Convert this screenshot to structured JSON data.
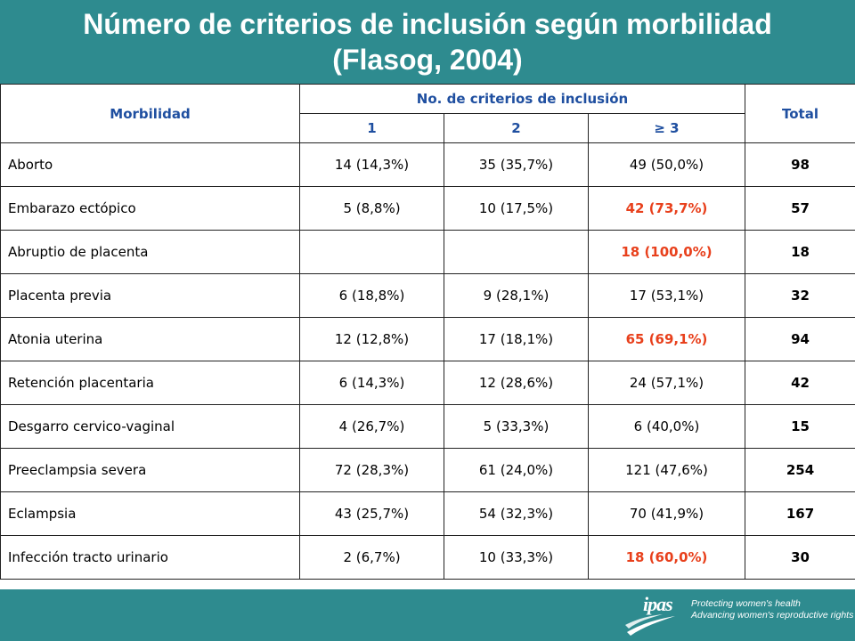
{
  "title": {
    "line1": "Número de criterios de inclusión según morbilidad",
    "line2": "(Flasog, 2004)"
  },
  "table": {
    "header": {
      "morbilidad": "Morbilidad",
      "group": "No. de criterios de inclusión",
      "total": "Total",
      "sub": [
        "1",
        "2",
        "≥ 3"
      ]
    },
    "rows": [
      {
        "name": "Aborto",
        "c1": "14 (14,3%)",
        "c2": "35 (35,7%)",
        "c3": "49 (50,0%)",
        "total": "98"
      },
      {
        "name": "Embarazo ectópico",
        "c1": "5 (8,8%)",
        "c2": "10 (17,5%)",
        "c3": "42 (73,7%)",
        "total": "57"
      },
      {
        "name": "Abruptio de placenta",
        "c1": "",
        "c2": "",
        "c3": "18 (100,0%)",
        "total": "18"
      },
      {
        "name": "Placenta previa",
        "c1": "6 (18,8%)",
        "c2": "9 (28,1%)",
        "c3": "17 (53,1%)",
        "total": "32"
      },
      {
        "name": "Atonia uterina",
        "c1": "12 (12,8%)",
        "c2": "17 (18,1%)",
        "c3": "65 (69,1%)",
        "total": "94"
      },
      {
        "name": "Retención placentaria",
        "c1": "6 (14,3%)",
        "c2": "12 (28,6%)",
        "c3": "24 (57,1%)",
        "total": "42"
      },
      {
        "name": "Desgarro cervico-vaginal",
        "c1": "4 (26,7%)",
        "c2": "5 (33,3%)",
        "c3": "6 (40,0%)",
        "total": "15"
      },
      {
        "name": "Preeclampsia severa",
        "c1": "72 (28,3%)",
        "c2": "61 (24,0%)",
        "c3": "121 (47,6%)",
        "total": "254"
      },
      {
        "name": "Eclampsia",
        "c1": "43 (25,7%)",
        "c2": "54 (32,3%)",
        "c3": "70 (41,9%)",
        "total": "167"
      },
      {
        "name": "Infección tracto urinario",
        "c1": "2 (6,7%)",
        "c2": "10 (33,3%)",
        "c3": "18 (60,0%)",
        "total": "30"
      }
    ]
  },
  "colors": {
    "background": "#2e8b8f",
    "header_text": "#1f4fa0",
    "highlight": "#e8401c"
  },
  "logo": {
    "brand": "ipas",
    "line1": "Protecting women's health",
    "line2": "Advancing women's reproductive rights"
  }
}
